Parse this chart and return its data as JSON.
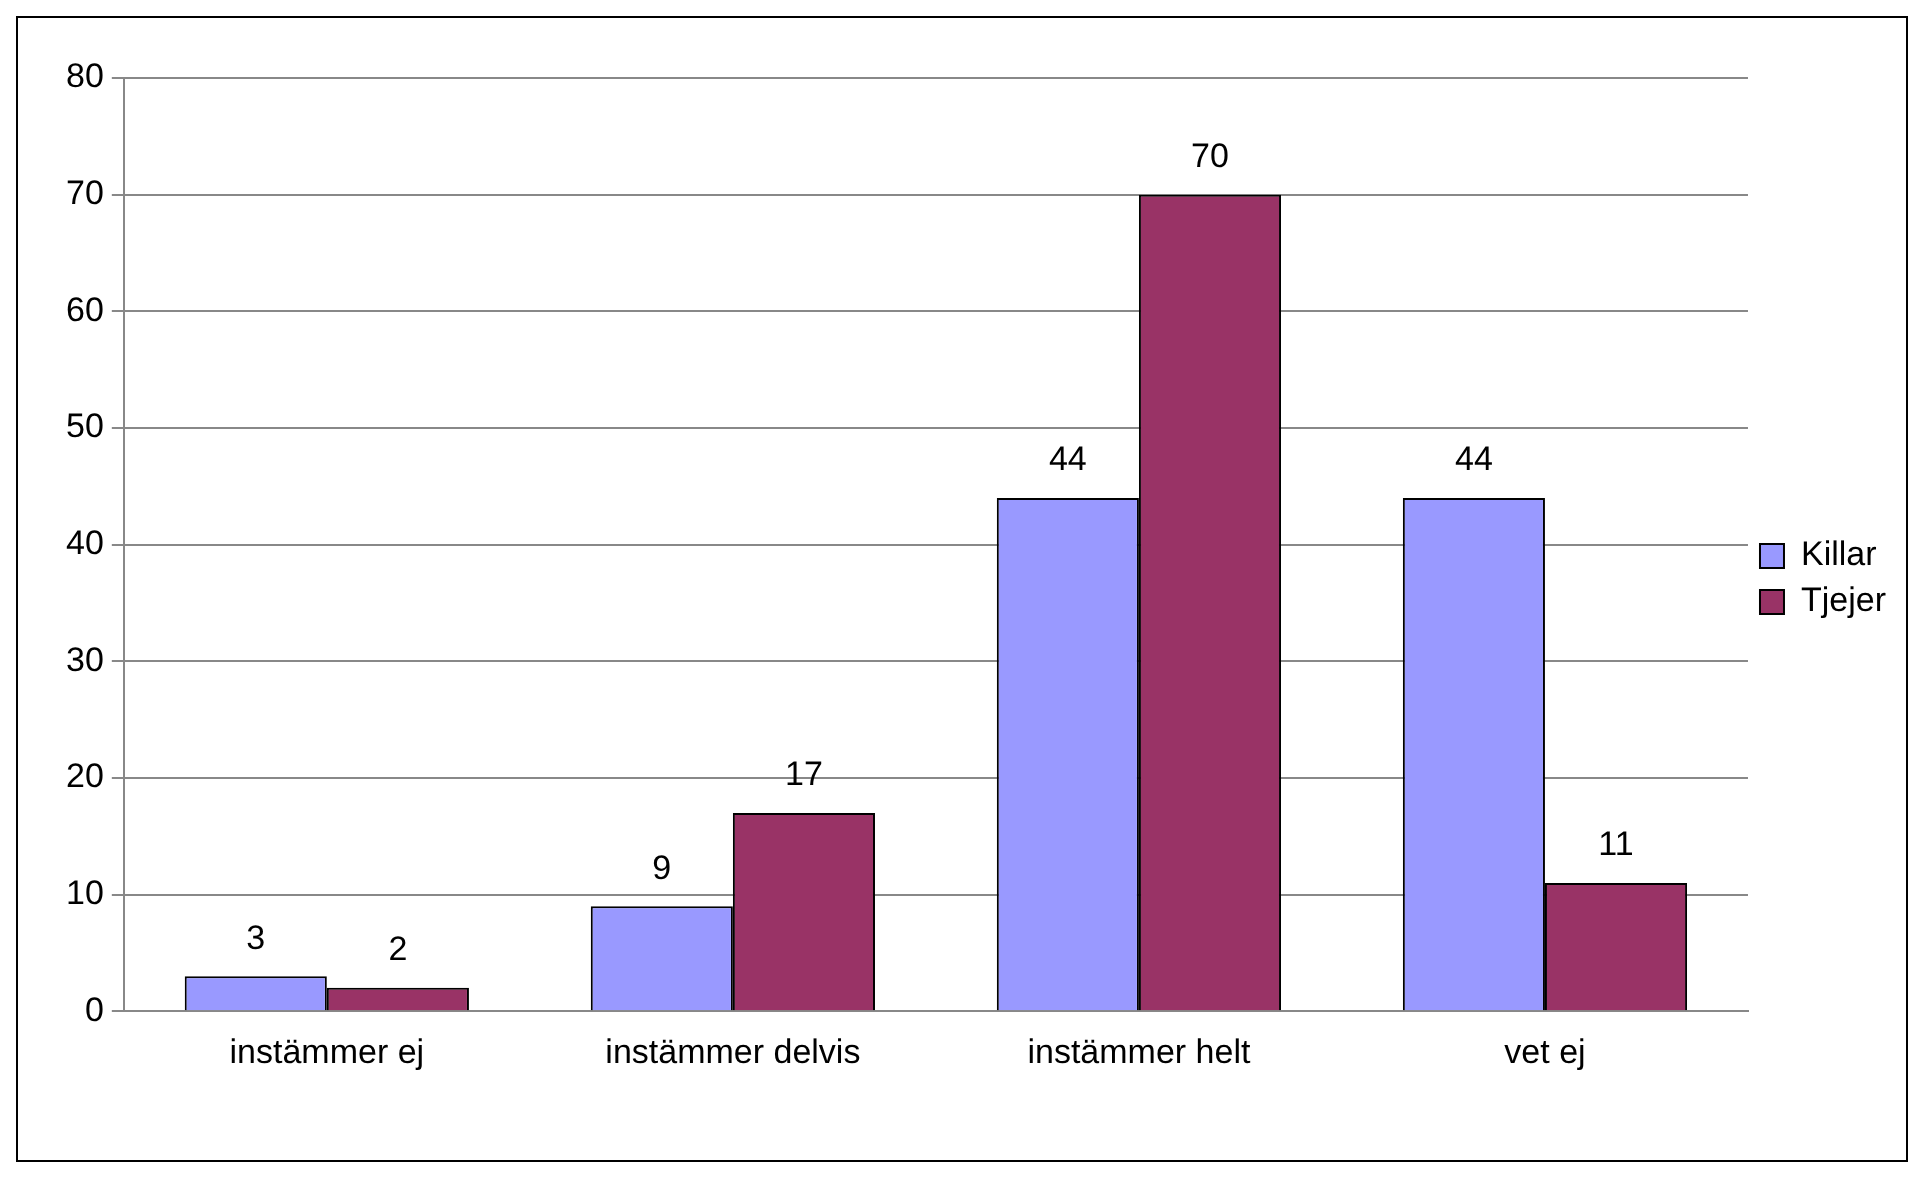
{
  "chart_data": {
    "type": "bar",
    "categories": [
      "instämmer ej",
      "instämmer delvis",
      "instämmer helt",
      "vet ej"
    ],
    "series": [
      {
        "name": "Killar",
        "color": "#9999ff",
        "values": [
          3,
          9,
          44,
          44
        ]
      },
      {
        "name": "Tjejer",
        "color": "#993366",
        "values": [
          2,
          17,
          70,
          11
        ]
      }
    ],
    "ylim": [
      0,
      80
    ],
    "yticks": [
      0,
      10,
      20,
      30,
      40,
      50,
      60,
      70,
      80
    ],
    "grid": "y",
    "legend": "right",
    "data_labels": true
  }
}
